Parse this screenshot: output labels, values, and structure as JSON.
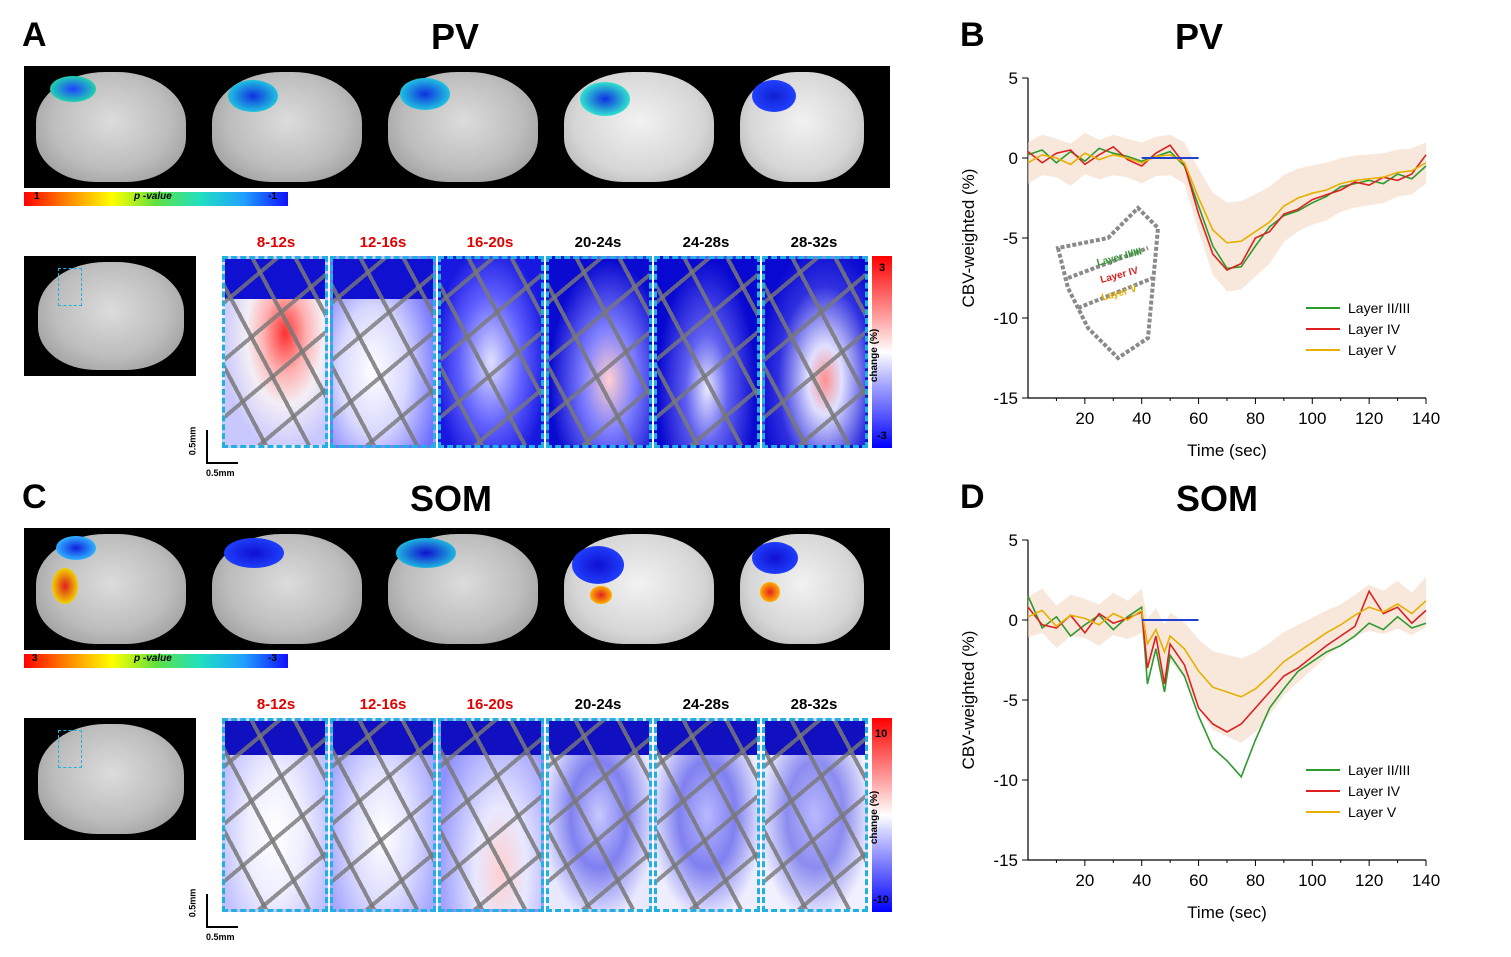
{
  "panels": {
    "a_letter": "A",
    "b_letter": "B",
    "c_letter": "C",
    "d_letter": "D",
    "a_title": "PV",
    "b_title": "PV",
    "c_title": "SOM",
    "d_title": "SOM"
  },
  "colorbars": {
    "pv_left": "1",
    "pv_mid": "p -value",
    "pv_right": "-1",
    "som_left": "3",
    "som_mid": "p -value",
    "som_right": "-3"
  },
  "time_windows": [
    "8-12s",
    "12-16s",
    "16-20s",
    "20-24s",
    "24-28s",
    "28-32s"
  ],
  "change_bars": {
    "pv_top": "3",
    "pv_bottom": "-3",
    "pv_label": "change (%)",
    "som_top": "10",
    "som_bottom": "-10",
    "som_label": "change (%)"
  },
  "scalebar": {
    "vertical": "0.5mm",
    "horizontal": "0.5mm"
  },
  "inset_labels": [
    "Layer II/III",
    "Layer IV",
    "Layer V"
  ],
  "colors": {
    "green": "#2e9a2e",
    "red": "#dd2020",
    "yellow": "#e6b000",
    "stim": "#2040d0",
    "highlight": "#e00000"
  },
  "chart_data": [
    {
      "type": "line",
      "title": "PV",
      "xlabel": "Time (sec)",
      "ylabel": "CBV-weighted (%)",
      "xlim": [
        0,
        140
      ],
      "ylim": [
        -15,
        5
      ],
      "xticks": [
        20,
        40,
        60,
        80,
        100,
        120,
        140
      ],
      "yticks": [
        5,
        0,
        -5,
        -10,
        -15
      ],
      "stimulus": {
        "x": [
          40,
          60
        ],
        "y": 0
      },
      "series": [
        {
          "name": "Layer II/III",
          "color": "#2e9a2e",
          "x": [
            0,
            5,
            10,
            15,
            20,
            25,
            30,
            35,
            40,
            45,
            50,
            55,
            60,
            65,
            70,
            75,
            80,
            85,
            90,
            95,
            100,
            105,
            110,
            115,
            120,
            125,
            130,
            135,
            140
          ],
          "y": [
            0.2,
            0.5,
            -0.3,
            0.4,
            -0.2,
            0.6,
            0.3,
            0.1,
            -0.2,
            0.1,
            0.4,
            -0.5,
            -3.0,
            -5.5,
            -6.9,
            -6.8,
            -5.5,
            -4.3,
            -3.6,
            -3.3,
            -2.8,
            -2.4,
            -1.8,
            -1.6,
            -1.4,
            -1.6,
            -1.0,
            -1.3,
            -0.5
          ]
        },
        {
          "name": "Layer IV",
          "color": "#dd2020",
          "x": [
            0,
            5,
            10,
            15,
            20,
            25,
            30,
            35,
            40,
            45,
            50,
            55,
            60,
            65,
            70,
            75,
            80,
            85,
            90,
            95,
            100,
            105,
            110,
            115,
            120,
            125,
            130,
            135,
            140
          ],
          "y": [
            0.4,
            -0.3,
            0.3,
            0.5,
            -0.4,
            0.2,
            0.7,
            -0.1,
            -0.5,
            0.3,
            0.8,
            -0.4,
            -3.5,
            -6.0,
            -7.0,
            -6.6,
            -5.0,
            -4.6,
            -3.5,
            -3.2,
            -2.6,
            -2.3,
            -2.0,
            -1.5,
            -1.7,
            -1.2,
            -1.4,
            -1.0,
            0.2
          ]
        },
        {
          "name": "Layer V",
          "color": "#e6b000",
          "x": [
            0,
            5,
            10,
            15,
            20,
            25,
            30,
            35,
            40,
            45,
            50,
            55,
            60,
            65,
            70,
            75,
            80,
            85,
            90,
            95,
            100,
            105,
            110,
            115,
            120,
            125,
            130,
            135,
            140
          ],
          "y": [
            -0.3,
            0.2,
            0.0,
            -0.4,
            0.3,
            -0.1,
            0.2,
            0.0,
            -0.3,
            0.1,
            0.2,
            -0.3,
            -2.5,
            -4.5,
            -5.3,
            -5.2,
            -4.6,
            -4.0,
            -3.0,
            -2.5,
            -2.2,
            -2.0,
            -1.6,
            -1.4,
            -1.3,
            -1.2,
            -0.9,
            -0.8,
            -0.3
          ]
        }
      ],
      "legend_loc": "bottom-right"
    },
    {
      "type": "line",
      "title": "SOM",
      "xlabel": "Time (sec)",
      "ylabel": "CBV-weighted (%)",
      "xlim": [
        0,
        140
      ],
      "ylim": [
        -15,
        5
      ],
      "xticks": [
        20,
        40,
        60,
        80,
        100,
        120,
        140
      ],
      "yticks": [
        5,
        0,
        -5,
        -10,
        -15
      ],
      "stimulus": {
        "x": [
          40,
          60
        ],
        "y": 0
      },
      "series": [
        {
          "name": "Layer II/III",
          "color": "#2e9a2e",
          "x": [
            0,
            5,
            10,
            15,
            20,
            25,
            30,
            35,
            40,
            42,
            45,
            48,
            50,
            55,
            60,
            65,
            70,
            75,
            80,
            85,
            90,
            95,
            100,
            105,
            110,
            115,
            120,
            125,
            130,
            135,
            140
          ],
          "y": [
            1.5,
            -0.5,
            0.2,
            -1.0,
            -0.3,
            0.3,
            -0.6,
            0.2,
            0.8,
            -4.0,
            -1.8,
            -4.5,
            -2.2,
            -3.5,
            -6.0,
            -8.0,
            -8.8,
            -9.8,
            -7.5,
            -5.5,
            -4.3,
            -3.2,
            -2.6,
            -2.0,
            -1.6,
            -1.0,
            -0.2,
            -0.6,
            0.2,
            -0.5,
            -0.2
          ]
        },
        {
          "name": "Layer IV",
          "color": "#dd2020",
          "x": [
            0,
            5,
            10,
            15,
            20,
            25,
            30,
            35,
            40,
            42,
            45,
            48,
            50,
            55,
            60,
            65,
            70,
            75,
            80,
            85,
            90,
            95,
            100,
            105,
            110,
            115,
            120,
            125,
            130,
            135,
            140
          ],
          "y": [
            0.8,
            -0.3,
            -0.5,
            0.3,
            -0.8,
            0.4,
            -0.2,
            0.1,
            0.5,
            -3.0,
            -1.0,
            -4.0,
            -1.5,
            -2.8,
            -5.5,
            -6.5,
            -7.0,
            -6.5,
            -5.5,
            -4.5,
            -3.5,
            -3.0,
            -2.3,
            -1.6,
            -1.0,
            -0.4,
            1.8,
            0.4,
            0.8,
            -0.2,
            0.6
          ]
        },
        {
          "name": "Layer V",
          "color": "#e6b000",
          "x": [
            0,
            5,
            10,
            15,
            20,
            25,
            30,
            35,
            40,
            42,
            45,
            48,
            50,
            55,
            60,
            65,
            70,
            75,
            80,
            85,
            90,
            95,
            100,
            105,
            110,
            115,
            120,
            125,
            130,
            135,
            140
          ],
          "y": [
            0.2,
            0.6,
            -0.4,
            0.3,
            0.1,
            -0.3,
            0.4,
            0.0,
            0.6,
            -1.5,
            -0.6,
            -2.0,
            -1.0,
            -1.8,
            -3.2,
            -4.2,
            -4.5,
            -4.8,
            -4.3,
            -3.5,
            -2.6,
            -2.0,
            -1.4,
            -0.8,
            -0.3,
            0.3,
            0.8,
            0.5,
            1.0,
            0.4,
            1.2
          ]
        }
      ],
      "legend_loc": "bottom-right"
    }
  ]
}
